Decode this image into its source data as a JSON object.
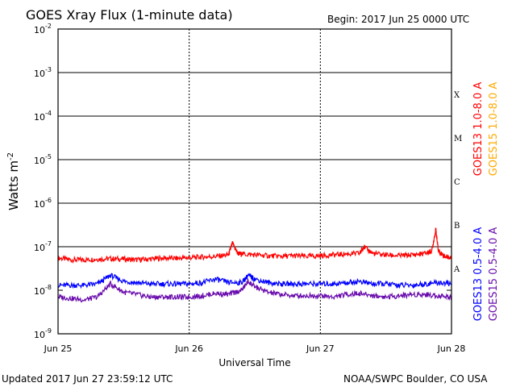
{
  "header": {
    "title": "GOES Xray Flux (1-minute data)",
    "begin": "Begin:  2017 Jun 25 0000 UTC"
  },
  "footer": {
    "updated": "Updated 2017 Jun 27 23:59:12 UTC",
    "credit": "NOAA/SWPC Boulder, CO USA"
  },
  "chart_data": {
    "type": "line",
    "title": "GOES Xray Flux (1-minute data)",
    "xlabel": "Universal Time",
    "ylabel": "Watts m-2",
    "yscale": "log",
    "ylim": [
      1e-09,
      0.01
    ],
    "xlim": [
      0,
      3
    ],
    "x_ticks": [
      {
        "x": 0,
        "label": "Jun 25"
      },
      {
        "x": 1,
        "label": "Jun 26"
      },
      {
        "x": 2,
        "label": "Jun 27"
      },
      {
        "x": 3,
        "label": "Jun 28"
      }
    ],
    "y_ticks": [
      {
        "mant": "10",
        "exp": "-9"
      },
      {
        "mant": "10",
        "exp": "-8"
      },
      {
        "mant": "10",
        "exp": "-7"
      },
      {
        "mant": "10",
        "exp": "-6"
      },
      {
        "mant": "10",
        "exp": "-5"
      },
      {
        "mant": "10",
        "exp": "-4"
      },
      {
        "mant": "10",
        "exp": "-3"
      },
      {
        "mant": "10",
        "exp": "-2"
      }
    ],
    "flare_classes": [
      {
        "label": "A",
        "low": 1e-08
      },
      {
        "label": "B",
        "low": 1e-07
      },
      {
        "label": "C",
        "low": 1e-06
      },
      {
        "label": "M",
        "low": 1e-05
      },
      {
        "label": "X",
        "low": 0.0001
      }
    ],
    "grid": "horizontal lines at each decade from 1e-7 to 1e-2; dotted vertical lines at day boundaries",
    "legend_position": "right side, vertical",
    "series": [
      {
        "name": "GOES13 1.0-8.0 A",
        "color": "#ff0000",
        "x": [
          0,
          0.1,
          0.2,
          0.3,
          0.4,
          0.5,
          0.6,
          0.7,
          0.8,
          0.9,
          1.0,
          1.1,
          1.2,
          1.3,
          1.33,
          1.37,
          1.4,
          1.5,
          1.6,
          1.7,
          1.8,
          1.9,
          2.0,
          2.1,
          2.2,
          2.3,
          2.33,
          2.4,
          2.5,
          2.6,
          2.7,
          2.8,
          2.85,
          2.88,
          2.9,
          2.95,
          3.0
        ],
        "y": [
          5.5e-08,
          5e-08,
          5e-08,
          5.2e-08,
          5.3e-08,
          5.2e-08,
          5e-08,
          5.2e-08,
          5.5e-08,
          5.4e-08,
          5.6e-08,
          5.8e-08,
          6e-08,
          6.5e-08,
          1.2e-07,
          7e-08,
          6.8e-08,
          6.5e-08,
          6.2e-08,
          6e-08,
          6.2e-08,
          6e-08,
          6.2e-08,
          6.5e-08,
          6.8e-08,
          7e-08,
          1e-07,
          7e-08,
          6.5e-08,
          6.2e-08,
          6.5e-08,
          7e-08,
          8e-08,
          2.5e-07,
          8e-08,
          6e-08,
          5.5e-08
        ]
      },
      {
        "name": "GOES15 1.0-8.0 A",
        "color": "#ffaa00",
        "x": [
          0,
          3
        ],
        "y": [
          null,
          null
        ]
      },
      {
        "name": "GOES13 0.5-4.0 A",
        "color": "#0000ff",
        "x": [
          0,
          0.1,
          0.2,
          0.3,
          0.4,
          0.5,
          0.6,
          0.7,
          0.8,
          0.9,
          1.0,
          1.1,
          1.2,
          1.3,
          1.4,
          1.45,
          1.5,
          1.6,
          1.7,
          1.8,
          1.9,
          2.0,
          2.1,
          2.2,
          2.3,
          2.4,
          2.5,
          2.6,
          2.7,
          2.8,
          2.9,
          3.0
        ],
        "y": [
          1.3e-08,
          1.3e-08,
          1.3e-08,
          1.4e-08,
          2.2e-08,
          1.6e-08,
          1.5e-08,
          1.4e-08,
          1.4e-08,
          1.4e-08,
          1.4e-08,
          1.5e-08,
          1.8e-08,
          1.5e-08,
          1.5e-08,
          2.2e-08,
          1.8e-08,
          1.5e-08,
          1.4e-08,
          1.4e-08,
          1.4e-08,
          1.4e-08,
          1.4e-08,
          1.5e-08,
          1.6e-08,
          1.4e-08,
          1.4e-08,
          1.3e-08,
          1.3e-08,
          1.4e-08,
          1.5e-08,
          1.4e-08
        ]
      },
      {
        "name": "GOES15 0.5-4.0 A",
        "color": "#6a0dad",
        "x": [
          0,
          0.1,
          0.2,
          0.3,
          0.4,
          0.5,
          0.6,
          0.7,
          0.8,
          0.9,
          1.0,
          1.1,
          1.2,
          1.3,
          1.4,
          1.45,
          1.5,
          1.6,
          1.7,
          1.8,
          1.9,
          2.0,
          2.1,
          2.2,
          2.3,
          2.4,
          2.5,
          2.6,
          2.7,
          2.8,
          2.9,
          3.0
        ],
        "y": [
          7e-09,
          6.5e-09,
          6e-09,
          7e-09,
          1.4e-08,
          9e-09,
          8e-09,
          7e-09,
          7e-09,
          7e-09,
          7e-09,
          7.5e-09,
          8.5e-09,
          8e-09,
          1e-08,
          1.6e-08,
          1.2e-08,
          9e-09,
          8e-09,
          7.5e-09,
          7.5e-09,
          7.5e-09,
          7e-09,
          8e-09,
          8.5e-09,
          7.5e-09,
          7e-09,
          7.5e-09,
          8e-09,
          8e-09,
          7.5e-09,
          7e-09
        ]
      }
    ]
  }
}
